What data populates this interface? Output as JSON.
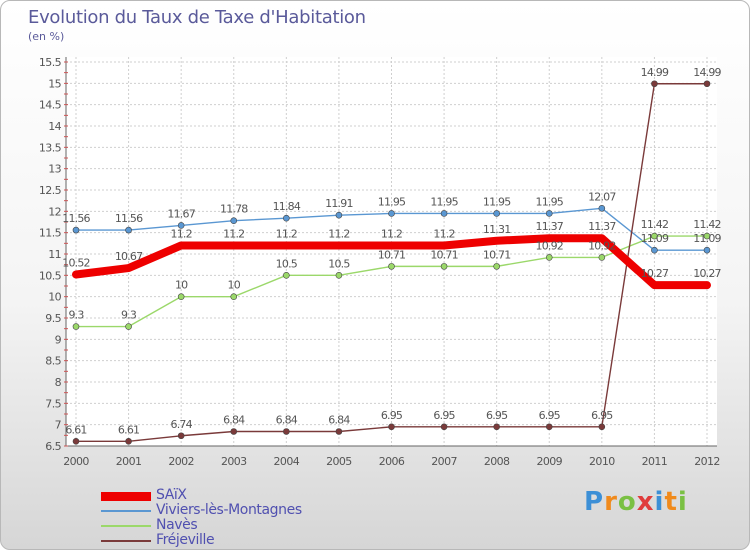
{
  "title": "Evolution du Taux de Taxe d'Habitation",
  "subtitle": "(en %)",
  "brand": {
    "letters": [
      "P",
      "r",
      "o",
      "x",
      "i",
      "t",
      "i"
    ],
    "colors": [
      "#3c8fd6",
      "#f08a1c",
      "#7ac043",
      "#e03c3c",
      "#3c8fd6",
      "#f08a1c",
      "#7ac043"
    ]
  },
  "chart_data": {
    "type": "line",
    "x": [
      "2000",
      "2001",
      "2002",
      "2003",
      "2004",
      "2005",
      "2006",
      "2007",
      "2008",
      "2009",
      "2010",
      "2011",
      "2012"
    ],
    "ylim": [
      6.5,
      15.5
    ],
    "yticks": [
      "6.5",
      "7",
      "7.5",
      "8",
      "8.5",
      "9",
      "9.5",
      "10",
      "10.5",
      "11",
      "11.5",
      "12",
      "12.5",
      "13",
      "13.5",
      "14",
      "14.5",
      "15",
      "15.5"
    ],
    "grid": true,
    "legend_position": "bottom-left",
    "series": [
      {
        "name": "SAïX",
        "color": "#ee0000",
        "width": 8,
        "marker": false,
        "values": [
          10.52,
          10.67,
          11.2,
          11.2,
          11.2,
          11.2,
          11.2,
          11.2,
          11.31,
          11.37,
          11.37,
          10.27,
          10.27
        ],
        "labels": [
          "10.52",
          "10.67",
          "11.2",
          "11.2",
          "11.2",
          "11.2",
          "11.2",
          "11.2",
          "11.31",
          "11.37",
          "11.37",
          "10.27",
          "10.27"
        ]
      },
      {
        "name": "Viviers-lès-Montagnes",
        "color": "#5a97d2",
        "width": 1.4,
        "marker": true,
        "values": [
          11.56,
          11.56,
          11.67,
          11.78,
          11.84,
          11.91,
          11.95,
          11.95,
          11.95,
          11.95,
          12.07,
          11.09,
          11.09
        ],
        "labels": [
          "11.56",
          "11.56",
          "11.67",
          "11.78",
          "11.84",
          "11.91",
          "11.95",
          "11.95",
          "11.95",
          "11.95",
          "12.07",
          "11.09",
          "11.09"
        ]
      },
      {
        "name": "Navès",
        "color": "#9bd86a",
        "width": 1.4,
        "marker": true,
        "values": [
          9.3,
          9.3,
          10,
          10,
          10.5,
          10.5,
          10.71,
          10.71,
          10.71,
          10.92,
          10.92,
          11.42,
          11.42
        ],
        "labels": [
          "9.3",
          "9.3",
          "10",
          "10",
          "10.5",
          "10.5",
          "10.71",
          "10.71",
          "10.71",
          "10.92",
          "10.92",
          "11.42",
          "11.42"
        ]
      },
      {
        "name": "Fréjeville",
        "color": "#7a3a3a",
        "width": 1.4,
        "marker": true,
        "values": [
          6.61,
          6.61,
          6.74,
          6.84,
          6.84,
          6.84,
          6.95,
          6.95,
          6.95,
          6.95,
          6.95,
          14.99,
          14.99
        ],
        "labels": [
          "6.61",
          "6.61",
          "6.74",
          "6.84",
          "6.84",
          "6.84",
          "6.95",
          "6.95",
          "6.95",
          "6.95",
          "6.95",
          "14.99",
          "14.99"
        ]
      }
    ]
  }
}
